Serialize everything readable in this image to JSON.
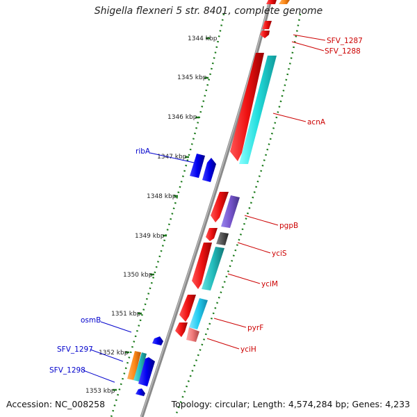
{
  "title": "Shigella flexneri 5 str. 8401, complete genome",
  "accession": "Accession: NC_008258",
  "topology": "Topology: circular; Length: 4,574,284 bp; Genes: 4,233",
  "colors": {
    "backbone": "#888888",
    "tick": "#1a7a1a",
    "label_forward": "#0000cc",
    "label_reverse": "#cc0000",
    "red_gene": "#ee1111",
    "blue_gene": "#0000ee",
    "cyan_gene": "#22dddd",
    "purple_gene": "#7755cc",
    "gray_gene": "#555555",
    "orange_gene": "#ff8c1a",
    "pink_gene": "#ee7777",
    "teal_gene": "#22bbbb"
  },
  "ticks": [
    "1344 kbp",
    "1345 kbp",
    "1346 kbp",
    "1347 kbp",
    "1348 kbp",
    "1349 kbp",
    "1350 kbp",
    "1351 kbp",
    "1352 kbp",
    "1353 kbp"
  ],
  "forward_labels": [
    {
      "name": "ribA",
      "color": "#0000cc"
    },
    {
      "name": "osmB",
      "color": "#0000cc"
    },
    {
      "name": "SFV_1297",
      "color": "#0000cc"
    },
    {
      "name": "SFV_1298",
      "color": "#0000cc"
    }
  ],
  "reverse_labels": [
    {
      "name": "SFV_1287",
      "color": "#cc0000"
    },
    {
      "name": "SFV_1288",
      "color": "#cc0000"
    },
    {
      "name": "acnA",
      "color": "#cc0000"
    },
    {
      "name": "pgpB",
      "color": "#cc0000"
    },
    {
      "name": "yciS",
      "color": "#cc0000"
    },
    {
      "name": "yciM",
      "color": "#cc0000"
    },
    {
      "name": "pyrF",
      "color": "#cc0000"
    },
    {
      "name": "yciH",
      "color": "#cc0000"
    }
  ]
}
